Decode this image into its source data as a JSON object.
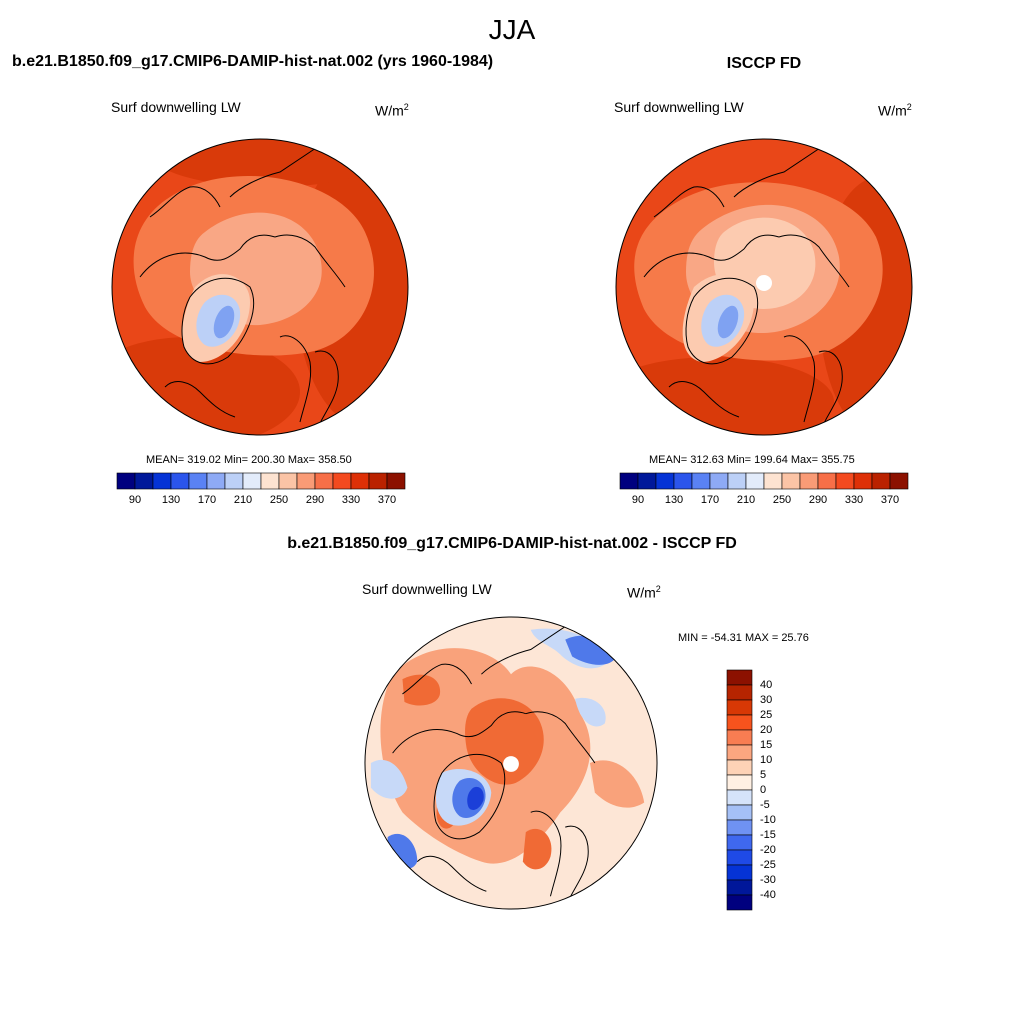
{
  "figure": {
    "season": "JJA",
    "left_title": "b.e21.B1850.f09_g17.CMIP6-DAMIP-hist-nat.002 (yrs 1960-1984)",
    "right_title": "ISCCP FD",
    "diff_title": "b.e21.B1850.f09_g17.CMIP6-DAMIP-hist-nat.002 - ISCCP FD"
  },
  "panels": {
    "model": {
      "variable": "Surf downwelling LW",
      "units_base": "W/m",
      "units_exp": "2",
      "stats": "MEAN= 319.02  Min= 200.30  Max= 358.50"
    },
    "obs": {
      "variable": "Surf downwelling LW",
      "units_base": "W/m",
      "units_exp": "2",
      "stats": "MEAN= 312.63  Min= 199.64  Max= 355.75"
    },
    "diff": {
      "variable": "Surf downwelling LW",
      "units_base": "W/m",
      "units_exp": "2",
      "stats": "MIN = -54.31 MAX =  25.76"
    }
  },
  "colorbars": {
    "absolute": {
      "colors": [
        "#00007f",
        "#00189a",
        "#0533d6",
        "#2b55ec",
        "#5a82f4",
        "#8eaaf5",
        "#bcd0f7",
        "#e3ecfb",
        "#fde3d1",
        "#fbc4a6",
        "#f99b76",
        "#f76f48",
        "#f44a1f",
        "#de3007",
        "#ba2200",
        "#8c1100"
      ],
      "tick_labels": [
        "90",
        "130",
        "170",
        "210",
        "250",
        "290",
        "330",
        "370"
      ]
    },
    "difference": {
      "colors": [
        "#00007f",
        "#00179a",
        "#0533d6",
        "#1f4ae6",
        "#3f68ef",
        "#6f92f3",
        "#a5c0f6",
        "#d5e3fa",
        "#fff0e3",
        "#fdd2b6",
        "#fba680",
        "#f87d52",
        "#f6531d",
        "#d83805",
        "#b62400",
        "#8c1100"
      ],
      "tick_labels": [
        "40",
        "30",
        "25",
        "20",
        "15",
        "10",
        "5",
        "0",
        "-5",
        "-10",
        "-15",
        "-20",
        "-25",
        "-30",
        "-40"
      ]
    }
  },
  "map_colors": {
    "base_warm": "#e94718",
    "warm_deep": "#d93a0a",
    "mid": "#f67a49",
    "light": "#f9a785",
    "pale": "#fccbb0",
    "cold_light": "#bcd0f7",
    "cold": "#7fa2f2",
    "diff_base": "#fde6d6",
    "diff_warm": "#f9a27b",
    "diff_hot": "#f06a35",
    "diff_cool": "#c7d9f8",
    "diff_cold": "#4f79ea",
    "diff_deep": "#1b3fd8",
    "coast": "#000000"
  }
}
